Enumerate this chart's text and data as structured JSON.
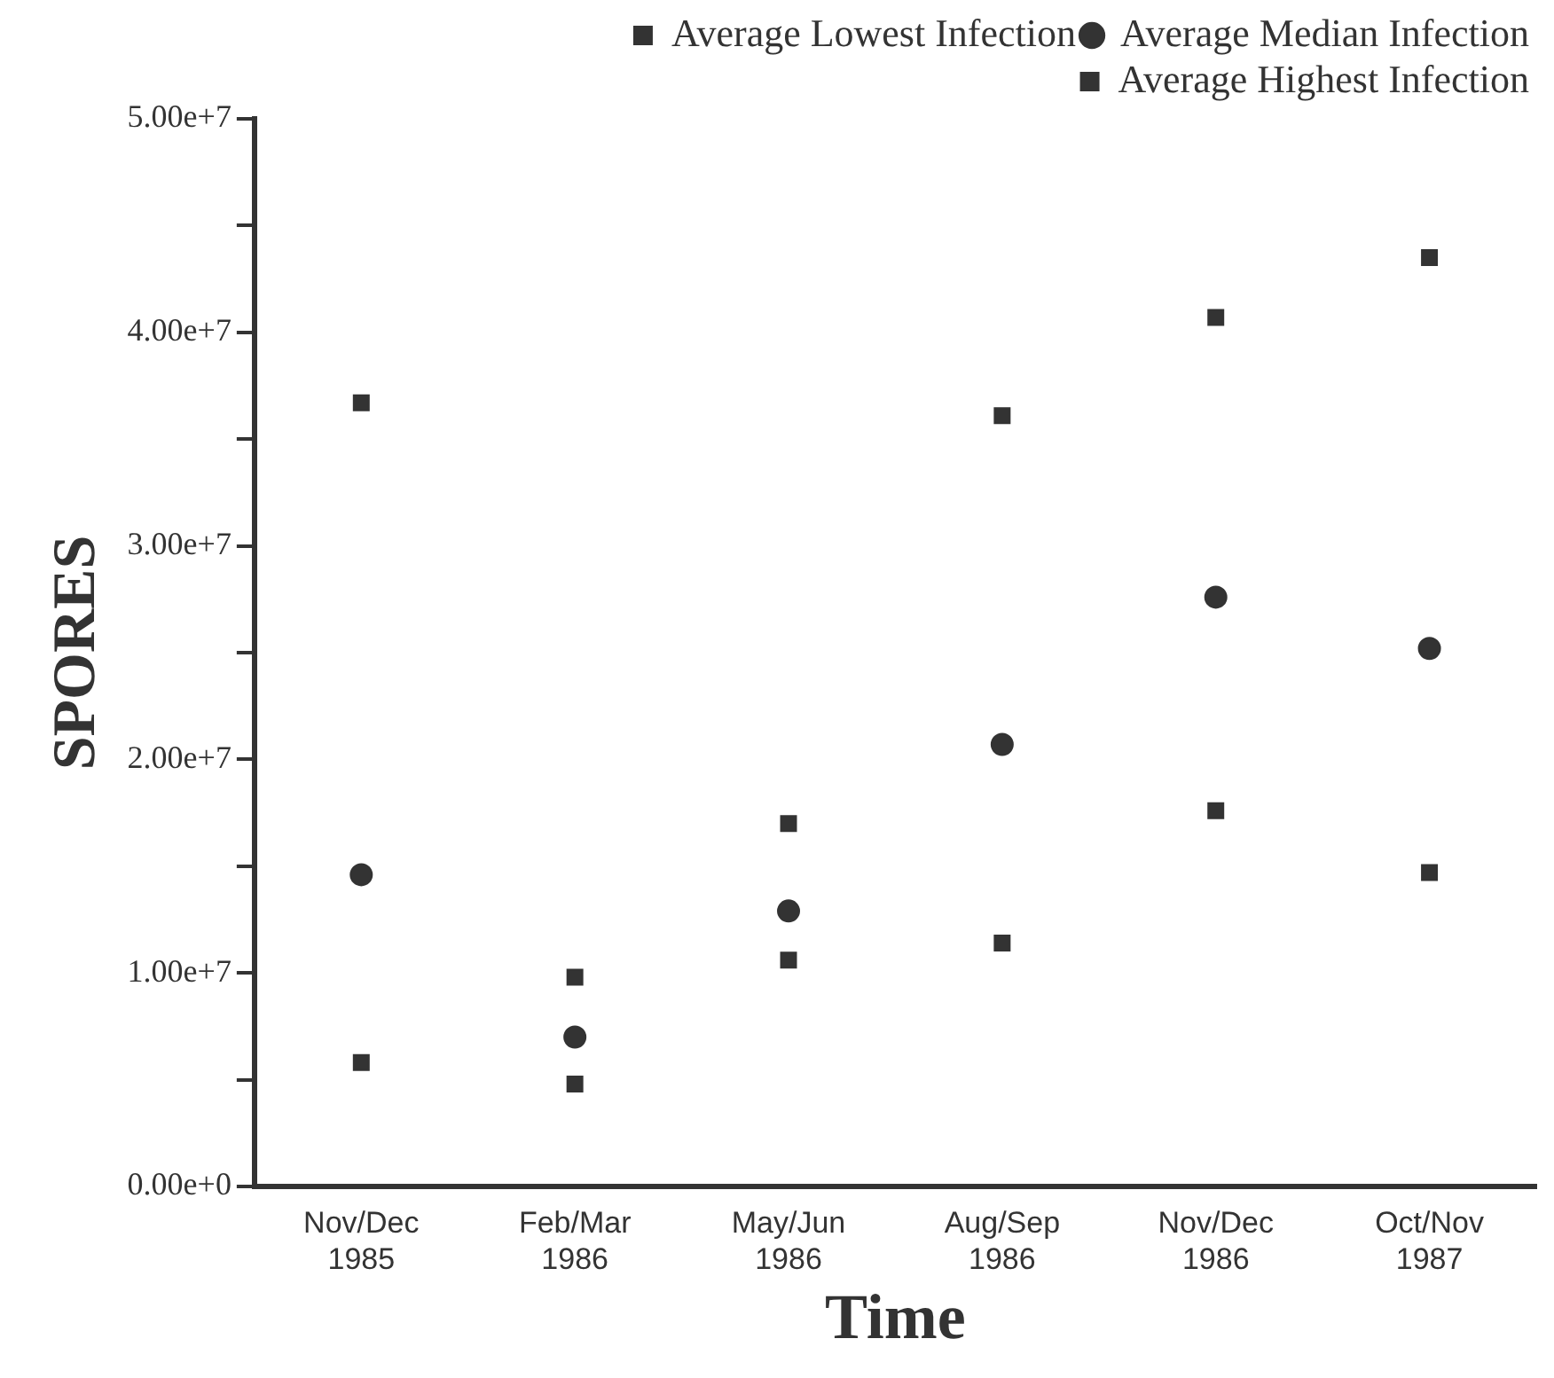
{
  "chart_data": {
    "type": "scatter",
    "xlabel": "Time",
    "ylabel": "SPORES",
    "categories": [
      "Nov/Dec\n1985",
      "Feb/Mar\n1986",
      "May/Jun\n1986",
      "Aug/Sep\n1986",
      "Nov/Dec\n1986",
      "Oct/Nov\n1987"
    ],
    "series": [
      {
        "name": "Average Lowest Infection",
        "color": "#333333",
        "marker": "square",
        "values": [
          5800000,
          4800000,
          10600000,
          11400000,
          17600000,
          14700000
        ]
      },
      {
        "name": "Average Median Infection",
        "color": "#333333",
        "marker": "circle",
        "values": [
          14600000,
          7000000,
          12900000,
          20700000,
          27600000,
          25200000
        ]
      },
      {
        "name": "Average Highest Infection",
        "color": "#333333",
        "marker": "square",
        "values": [
          36700000,
          9800000,
          17000000,
          36100000,
          40700000,
          43500000
        ]
      }
    ],
    "ylim": [
      0,
      50000000
    ],
    "yticks": [
      {
        "value": 0,
        "label": "0.00e+0"
      },
      {
        "value": 5000000,
        "label": null
      },
      {
        "value": 10000000,
        "label": "1.00e+7"
      },
      {
        "value": 15000000,
        "label": null
      },
      {
        "value": 20000000,
        "label": "2.00e+7"
      },
      {
        "value": 25000000,
        "label": null
      },
      {
        "value": 30000000,
        "label": "3.00e+7"
      },
      {
        "value": 35000000,
        "label": null
      },
      {
        "value": 40000000,
        "label": "4.00e+7"
      },
      {
        "value": 45000000,
        "label": null
      },
      {
        "value": 50000000,
        "label": "5.00e+7"
      }
    ],
    "grid": false,
    "legend": "top right"
  }
}
